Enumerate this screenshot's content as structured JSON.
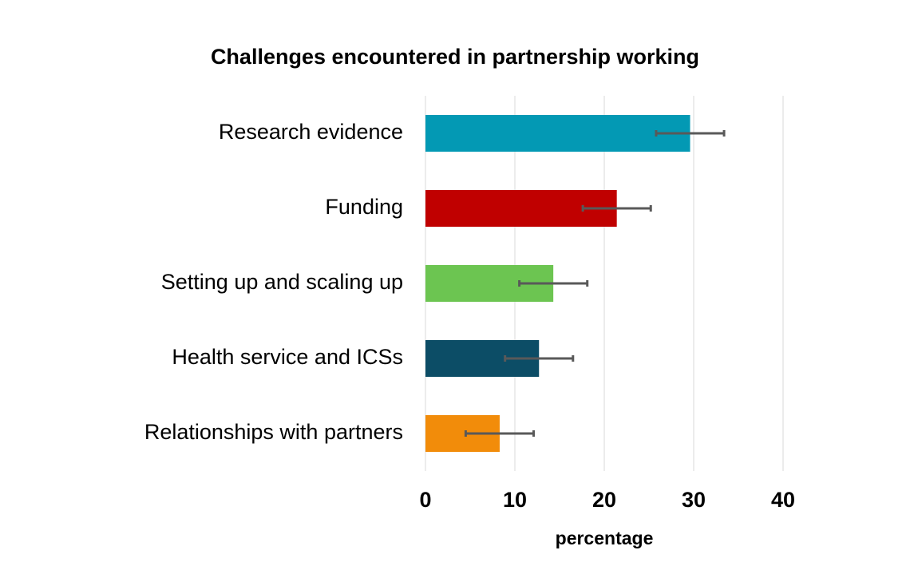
{
  "chart_data": {
    "type": "barh",
    "title": "Challenges encountered in partnership working",
    "x_label": "percentage",
    "categories": [
      "Research evidence",
      "Funding",
      "Setting up and scaling up",
      "Health service and ICSs",
      "Relationships with partners"
    ],
    "values": [
      29.6,
      21.4,
      14.3,
      12.7,
      8.3
    ],
    "errors": [
      3.8,
      3.8,
      3.8,
      3.8,
      3.8
    ],
    "colors": [
      "#0399b4",
      "#c00000",
      "#6cc551",
      "#0c4d66",
      "#f28c0a"
    ],
    "error_color": "#595959",
    "xlim": [
      0,
      40
    ],
    "xticks": [
      0,
      10,
      20,
      30,
      40
    ],
    "grid": true
  }
}
